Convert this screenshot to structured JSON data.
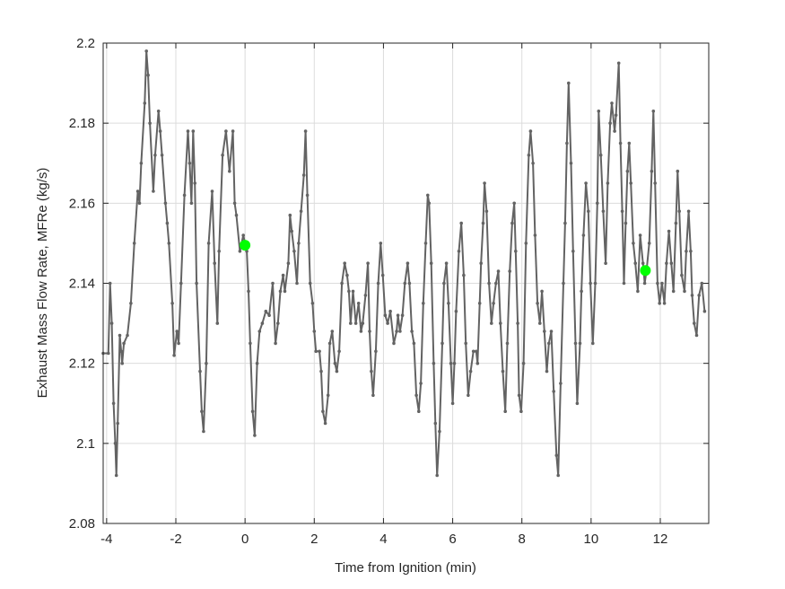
{
  "chart_data": {
    "type": "line",
    "title": "",
    "xlabel": "Time from Ignition (min)",
    "ylabel": "Exhaust Mass Flow Rate, MFRe (kg/s)",
    "xlim": [
      -4.1,
      13.4
    ],
    "ylim": [
      2.08,
      2.2
    ],
    "xticks": [
      -4,
      -2,
      0,
      2,
      4,
      6,
      8,
      10,
      12
    ],
    "yticks": [
      2.08,
      2.1,
      2.12,
      2.14,
      2.16,
      2.18,
      2.2
    ],
    "xtick_labels": [
      "-4",
      "-2",
      "0",
      "2",
      "4",
      "6",
      "8",
      "10",
      "12"
    ],
    "ytick_labels": [
      "2.08",
      "2.1",
      "2.12",
      "2.14",
      "2.16",
      "2.18",
      "2.2"
    ],
    "grid": true,
    "series": [
      {
        "color": "#636363",
        "marker": "dot",
        "points": [
          [
            -4.1,
            2.1225
          ],
          [
            -3.95,
            2.1225
          ],
          [
            -3.9,
            2.14
          ],
          [
            -3.85,
            2.13
          ],
          [
            -3.8,
            2.11
          ],
          [
            -3.75,
            2.1
          ],
          [
            -3.72,
            2.092
          ],
          [
            -3.68,
            2.105
          ],
          [
            -3.62,
            2.127
          ],
          [
            -3.58,
            2.123
          ],
          [
            -3.55,
            2.12
          ],
          [
            -3.5,
            2.125
          ],
          [
            -3.4,
            2.127
          ],
          [
            -3.3,
            2.135
          ],
          [
            -3.2,
            2.15
          ],
          [
            -3.1,
            2.163
          ],
          [
            -3.05,
            2.16
          ],
          [
            -3.0,
            2.17
          ],
          [
            -2.9,
            2.185
          ],
          [
            -2.85,
            2.198
          ],
          [
            -2.8,
            2.192
          ],
          [
            -2.75,
            2.18
          ],
          [
            -2.65,
            2.163
          ],
          [
            -2.6,
            2.172
          ],
          [
            -2.5,
            2.183
          ],
          [
            -2.45,
            2.178
          ],
          [
            -2.4,
            2.172
          ],
          [
            -2.3,
            2.16
          ],
          [
            -2.25,
            2.155
          ],
          [
            -2.2,
            2.15
          ],
          [
            -2.1,
            2.135
          ],
          [
            -2.05,
            2.122
          ],
          [
            -1.97,
            2.128
          ],
          [
            -1.92,
            2.125
          ],
          [
            -1.85,
            2.14
          ],
          [
            -1.75,
            2.162
          ],
          [
            -1.65,
            2.178
          ],
          [
            -1.6,
            2.17
          ],
          [
            -1.55,
            2.16
          ],
          [
            -1.5,
            2.178
          ],
          [
            -1.45,
            2.165
          ],
          [
            -1.4,
            2.14
          ],
          [
            -1.3,
            2.118
          ],
          [
            -1.25,
            2.108
          ],
          [
            -1.2,
            2.103
          ],
          [
            -1.12,
            2.12
          ],
          [
            -1.05,
            2.15
          ],
          [
            -0.95,
            2.163
          ],
          [
            -0.88,
            2.145
          ],
          [
            -0.8,
            2.13
          ],
          [
            -0.75,
            2.148
          ],
          [
            -0.65,
            2.172
          ],
          [
            -0.55,
            2.178
          ],
          [
            -0.45,
            2.168
          ],
          [
            -0.35,
            2.178
          ],
          [
            -0.3,
            2.16
          ],
          [
            -0.25,
            2.157
          ],
          [
            -0.15,
            2.148
          ],
          [
            -0.05,
            2.152
          ],
          [
            0.0,
            2.15
          ],
          [
            0.05,
            2.148
          ],
          [
            0.1,
            2.138
          ],
          [
            0.15,
            2.125
          ],
          [
            0.22,
            2.108
          ],
          [
            0.28,
            2.102
          ],
          [
            0.35,
            2.12
          ],
          [
            0.42,
            2.128
          ],
          [
            0.5,
            2.13
          ],
          [
            0.6,
            2.133
          ],
          [
            0.7,
            2.132
          ],
          [
            0.8,
            2.14
          ],
          [
            0.88,
            2.125
          ],
          [
            0.95,
            2.13
          ],
          [
            1.02,
            2.138
          ],
          [
            1.1,
            2.142
          ],
          [
            1.15,
            2.138
          ],
          [
            1.25,
            2.145
          ],
          [
            1.3,
            2.157
          ],
          [
            1.35,
            2.153
          ],
          [
            1.42,
            2.148
          ],
          [
            1.5,
            2.14
          ],
          [
            1.55,
            2.15
          ],
          [
            1.62,
            2.158
          ],
          [
            1.7,
            2.167
          ],
          [
            1.75,
            2.178
          ],
          [
            1.8,
            2.162
          ],
          [
            1.88,
            2.14
          ],
          [
            1.95,
            2.135
          ],
          [
            2.0,
            2.128
          ],
          [
            2.05,
            2.123
          ],
          [
            2.15,
            2.123
          ],
          [
            2.2,
            2.118
          ],
          [
            2.25,
            2.108
          ],
          [
            2.32,
            2.105
          ],
          [
            2.4,
            2.112
          ],
          [
            2.45,
            2.125
          ],
          [
            2.52,
            2.128
          ],
          [
            2.6,
            2.12
          ],
          [
            2.65,
            2.118
          ],
          [
            2.72,
            2.123
          ],
          [
            2.8,
            2.14
          ],
          [
            2.88,
            2.145
          ],
          [
            2.95,
            2.142
          ],
          [
            3.0,
            2.138
          ],
          [
            3.05,
            2.13
          ],
          [
            3.12,
            2.138
          ],
          [
            3.2,
            2.13
          ],
          [
            3.28,
            2.135
          ],
          [
            3.35,
            2.128
          ],
          [
            3.4,
            2.13
          ],
          [
            3.48,
            2.137
          ],
          [
            3.55,
            2.145
          ],
          [
            3.6,
            2.128
          ],
          [
            3.65,
            2.118
          ],
          [
            3.7,
            2.112
          ],
          [
            3.78,
            2.123
          ],
          [
            3.85,
            2.14
          ],
          [
            3.92,
            2.15
          ],
          [
            3.98,
            2.142
          ],
          [
            4.05,
            2.132
          ],
          [
            4.12,
            2.13
          ],
          [
            4.2,
            2.133
          ],
          [
            4.3,
            2.125
          ],
          [
            4.38,
            2.128
          ],
          [
            4.42,
            2.132
          ],
          [
            4.48,
            2.128
          ],
          [
            4.55,
            2.132
          ],
          [
            4.62,
            2.14
          ],
          [
            4.7,
            2.145
          ],
          [
            4.75,
            2.14
          ],
          [
            4.82,
            2.128
          ],
          [
            4.88,
            2.125
          ],
          [
            4.95,
            2.112
          ],
          [
            5.02,
            2.108
          ],
          [
            5.08,
            2.115
          ],
          [
            5.15,
            2.135
          ],
          [
            5.22,
            2.15
          ],
          [
            5.28,
            2.162
          ],
          [
            5.32,
            2.16
          ],
          [
            5.38,
            2.145
          ],
          [
            5.45,
            2.12
          ],
          [
            5.5,
            2.105
          ],
          [
            5.55,
            2.092
          ],
          [
            5.62,
            2.103
          ],
          [
            5.7,
            2.125
          ],
          [
            5.75,
            2.14
          ],
          [
            5.82,
            2.145
          ],
          [
            5.88,
            2.135
          ],
          [
            5.95,
            2.12
          ],
          [
            6.0,
            2.11
          ],
          [
            6.05,
            2.12
          ],
          [
            6.1,
            2.133
          ],
          [
            6.18,
            2.148
          ],
          [
            6.25,
            2.155
          ],
          [
            6.32,
            2.142
          ],
          [
            6.38,
            2.125
          ],
          [
            6.45,
            2.112
          ],
          [
            6.52,
            2.118
          ],
          [
            6.6,
            2.123
          ],
          [
            6.68,
            2.123
          ],
          [
            6.72,
            2.12
          ],
          [
            6.78,
            2.135
          ],
          [
            6.82,
            2.145
          ],
          [
            6.88,
            2.155
          ],
          [
            6.92,
            2.165
          ],
          [
            6.98,
            2.158
          ],
          [
            7.05,
            2.14
          ],
          [
            7.12,
            2.13
          ],
          [
            7.18,
            2.135
          ],
          [
            7.25,
            2.14
          ],
          [
            7.32,
            2.143
          ],
          [
            7.38,
            2.13
          ],
          [
            7.45,
            2.118
          ],
          [
            7.52,
            2.108
          ],
          [
            7.58,
            2.125
          ],
          [
            7.65,
            2.143
          ],
          [
            7.72,
            2.155
          ],
          [
            7.78,
            2.16
          ],
          [
            7.82,
            2.148
          ],
          [
            7.88,
            2.13
          ],
          [
            7.92,
            2.112
          ],
          [
            7.98,
            2.108
          ],
          [
            8.05,
            2.12
          ],
          [
            8.12,
            2.15
          ],
          [
            8.2,
            2.172
          ],
          [
            8.25,
            2.178
          ],
          [
            8.32,
            2.17
          ],
          [
            8.38,
            2.152
          ],
          [
            8.45,
            2.135
          ],
          [
            8.52,
            2.13
          ],
          [
            8.58,
            2.138
          ],
          [
            8.65,
            2.128
          ],
          [
            8.72,
            2.118
          ],
          [
            8.78,
            2.125
          ],
          [
            8.85,
            2.128
          ],
          [
            8.92,
            2.113
          ],
          [
            9.0,
            2.097
          ],
          [
            9.05,
            2.092
          ],
          [
            9.12,
            2.115
          ],
          [
            9.2,
            2.14
          ],
          [
            9.25,
            2.155
          ],
          [
            9.3,
            2.175
          ],
          [
            9.35,
            2.19
          ],
          [
            9.42,
            2.17
          ],
          [
            9.48,
            2.148
          ],
          [
            9.55,
            2.125
          ],
          [
            9.6,
            2.11
          ],
          [
            9.68,
            2.125
          ],
          [
            9.72,
            2.138
          ],
          [
            9.78,
            2.152
          ],
          [
            9.85,
            2.165
          ],
          [
            9.92,
            2.158
          ],
          [
            9.98,
            2.14
          ],
          [
            10.05,
            2.125
          ],
          [
            10.12,
            2.14
          ],
          [
            10.18,
            2.16
          ],
          [
            10.22,
            2.183
          ],
          [
            10.28,
            2.172
          ],
          [
            10.35,
            2.158
          ],
          [
            10.42,
            2.145
          ],
          [
            10.48,
            2.165
          ],
          [
            10.55,
            2.18
          ],
          [
            10.6,
            2.185
          ],
          [
            10.68,
            2.178
          ],
          [
            10.72,
            2.182
          ],
          [
            10.8,
            2.195
          ],
          [
            10.85,
            2.175
          ],
          [
            10.9,
            2.158
          ],
          [
            10.95,
            2.14
          ],
          [
            11.0,
            2.155
          ],
          [
            11.05,
            2.168
          ],
          [
            11.1,
            2.175
          ],
          [
            11.15,
            2.165
          ],
          [
            11.22,
            2.15
          ],
          [
            11.28,
            2.145
          ],
          [
            11.35,
            2.138
          ],
          [
            11.42,
            2.152
          ],
          [
            11.5,
            2.145
          ],
          [
            11.55,
            2.14
          ],
          [
            11.6,
            2.143
          ],
          [
            11.68,
            2.15
          ],
          [
            11.75,
            2.168
          ],
          [
            11.8,
            2.183
          ],
          [
            11.85,
            2.165
          ],
          [
            11.92,
            2.14
          ],
          [
            11.98,
            2.135
          ],
          [
            12.05,
            2.14
          ],
          [
            12.12,
            2.135
          ],
          [
            12.18,
            2.145
          ],
          [
            12.25,
            2.153
          ],
          [
            12.32,
            2.145
          ],
          [
            12.38,
            2.138
          ],
          [
            12.45,
            2.155
          ],
          [
            12.5,
            2.168
          ],
          [
            12.55,
            2.158
          ],
          [
            12.62,
            2.142
          ],
          [
            12.7,
            2.138
          ],
          [
            12.75,
            2.148
          ],
          [
            12.82,
            2.158
          ],
          [
            12.88,
            2.148
          ],
          [
            12.92,
            2.137
          ],
          [
            12.98,
            2.13
          ],
          [
            13.05,
            2.127
          ],
          [
            13.12,
            2.137
          ],
          [
            13.2,
            2.14
          ],
          [
            13.28,
            2.133
          ]
        ]
      }
    ],
    "highlight_points": [
      {
        "x": 0.0,
        "y": 2.1495,
        "color": "#00ff00"
      },
      {
        "x": 11.57,
        "y": 2.1432,
        "color": "#00ff00"
      }
    ]
  }
}
